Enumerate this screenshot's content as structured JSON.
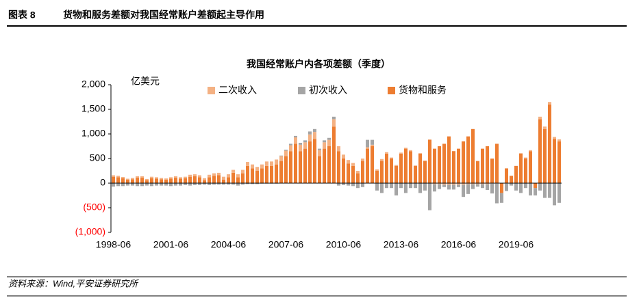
{
  "header": {
    "label": "图表 8",
    "title": "货物和服务差额对我国经常账户差额起主导作用"
  },
  "chart_data": {
    "type": "stacked_bar",
    "title": "我国经常账户内各项差额（季度）",
    "unit": "亿美元",
    "categories": [
      "1998-06",
      null,
      null,
      null,
      null,
      null,
      null,
      null,
      null,
      null,
      null,
      null,
      "2001-06",
      null,
      null,
      null,
      null,
      null,
      null,
      null,
      null,
      null,
      null,
      null,
      "2004-06",
      null,
      null,
      null,
      null,
      null,
      null,
      null,
      null,
      null,
      null,
      null,
      "2007-06",
      null,
      null,
      null,
      null,
      null,
      null,
      null,
      null,
      null,
      null,
      null,
      "2010-06",
      null,
      null,
      null,
      null,
      null,
      null,
      null,
      null,
      null,
      null,
      null,
      "2013-06",
      null,
      null,
      null,
      null,
      null,
      null,
      null,
      null,
      null,
      null,
      null,
      "2016-06",
      null,
      null,
      null,
      null,
      null,
      null,
      null,
      null,
      null,
      null,
      null,
      "2019-06",
      null,
      null,
      null,
      null,
      null,
      null,
      null,
      null,
      null
    ],
    "series": [
      {
        "name": "二次收入",
        "color": "#f4b183",
        "values": [
          30,
          30,
          25,
          20,
          25,
          30,
          30,
          25,
          30,
          30,
          25,
          25,
          30,
          30,
          30,
          30,
          40,
          40,
          40,
          40,
          50,
          50,
          50,
          60,
          60,
          60,
          60,
          70,
          80,
          80,
          80,
          80,
          90,
          90,
          100,
          100,
          110,
          120,
          130,
          130,
          130,
          140,
          140,
          120,
          130,
          130,
          150,
          100,
          80,
          70,
          60,
          50,
          50,
          30,
          30,
          30,
          40,
          30,
          20,
          20,
          20,
          20,
          20,
          10,
          10,
          10,
          10,
          -20,
          -20,
          -30,
          -30,
          -30,
          -30,
          -30,
          -20,
          -20,
          -20,
          -20,
          -20,
          -10,
          -10,
          0,
          -10,
          0,
          0,
          10,
          20,
          20,
          0,
          50,
          50,
          50,
          40,
          40
        ]
      },
      {
        "name": "初次收入",
        "color": "#a5a5a5",
        "values": [
          -70,
          -60,
          -60,
          -50,
          -50,
          -60,
          -60,
          -50,
          -60,
          -50,
          -50,
          -50,
          -60,
          -50,
          -50,
          -40,
          -50,
          -40,
          -40,
          -30,
          -40,
          -30,
          -30,
          -30,
          -30,
          -30,
          -50,
          -30,
          -20,
          -20,
          -20,
          -10,
          -10,
          -10,
          -10,
          10,
          20,
          30,
          30,
          40,
          40,
          60,
          60,
          30,
          40,
          40,
          50,
          -50,
          -40,
          -50,
          -60,
          -100,
          -80,
          150,
          100,
          -150,
          -200,
          -100,
          -100,
          -250,
          -100,
          -200,
          -100,
          -100,
          -200,
          -150,
          -550,
          -150,
          -100,
          -50,
          -100,
          -100,
          -50,
          -250,
          -200,
          -100,
          -50,
          -80,
          -120,
          -200,
          -400,
          -200,
          -150,
          -50,
          -150,
          -200,
          -100,
          -250,
          -150,
          -150,
          -300,
          -300,
          -450,
          -400
        ]
      },
      {
        "name": "货物和服务",
        "color": "#ed7d31",
        "values": [
          130,
          120,
          100,
          70,
          80,
          110,
          110,
          60,
          100,
          90,
          80,
          70,
          90,
          110,
          90,
          100,
          130,
          140,
          120,
          60,
          120,
          150,
          160,
          70,
          120,
          210,
          120,
          200,
          350,
          300,
          250,
          300,
          350,
          350,
          380,
          450,
          550,
          650,
          800,
          650,
          700,
          850,
          900,
          550,
          700,
          750,
          1150,
          650,
          500,
          400,
          350,
          200,
          450,
          700,
          750,
          250,
          450,
          600,
          500,
          350,
          600,
          700,
          650,
          350,
          600,
          450,
          880,
          700,
          750,
          800,
          950,
          650,
          700,
          850,
          950,
          1100,
          450,
          700,
          750,
          500,
          800,
          -200,
          300,
          150,
          350,
          600,
          500,
          650,
          -100,
          1300,
          1100,
          1600,
          900,
          850
        ]
      }
    ],
    "ylim": [
      -1000,
      2000
    ],
    "yticks": [
      {
        "value": 2000,
        "label": "2,000"
      },
      {
        "value": 1500,
        "label": "1,500"
      },
      {
        "value": 1000,
        "label": "1,000"
      },
      500,
      0,
      {
        "value": -500,
        "label": "(500)"
      },
      {
        "value": -1000,
        "label": "(1,000)"
      }
    ],
    "negative_tick_color": "#ff0000",
    "grid": false
  },
  "footer": {
    "source": "资料来源：Wind,平安证券研究所"
  }
}
